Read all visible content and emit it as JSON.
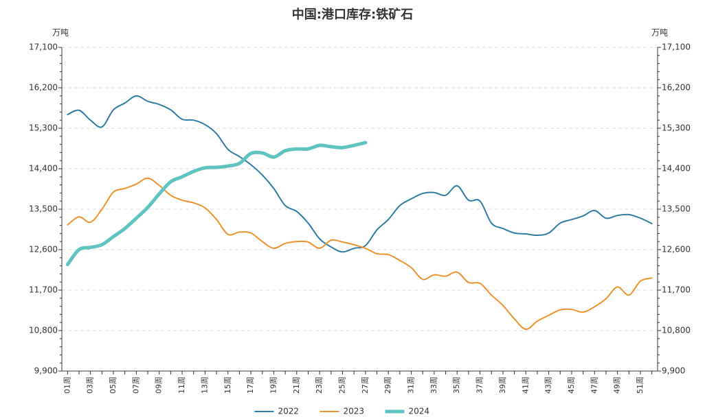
{
  "chart_data": {
    "type": "line",
    "title": "中国:港口库存:铁矿石",
    "y_unit": "万吨",
    "y2_unit": "万吨",
    "categories": [
      "01周",
      null,
      "03周",
      null,
      "05周",
      null,
      "07周",
      null,
      "09周",
      null,
      "11周",
      null,
      "13周",
      null,
      "15周",
      null,
      "17周",
      null,
      "19周",
      null,
      "21周",
      null,
      "23周",
      null,
      "25周",
      null,
      "27周",
      null,
      "29周",
      null,
      "31周",
      null,
      "33周",
      null,
      "35周",
      null,
      "37周",
      null,
      "39周",
      null,
      "41周",
      null,
      "43周",
      null,
      "45周",
      null,
      "47周",
      null,
      "49周",
      null,
      "51周",
      null
    ],
    "series": [
      {
        "name": "2022",
        "color": "#2e7ca3",
        "width": 2,
        "values": [
          15605,
          15700,
          15480,
          15330,
          15710,
          15860,
          16020,
          15900,
          15830,
          15710,
          15500,
          15480,
          15380,
          15180,
          14830,
          14670,
          14490,
          14260,
          13960,
          13580,
          13450,
          13190,
          12840,
          12660,
          12550,
          12630,
          12690,
          13040,
          13270,
          13580,
          13730,
          13850,
          13870,
          13810,
          14020,
          13700,
          13680,
          13190,
          13070,
          12970,
          12950,
          12920,
          12970,
          13190,
          13270,
          13350,
          13470,
          13300,
          13360,
          13380,
          13300,
          13180
        ]
      },
      {
        "name": "2023",
        "color": "#f0922b",
        "width": 2,
        "values": [
          13150,
          13330,
          13210,
          13500,
          13880,
          13960,
          14060,
          14190,
          14030,
          13810,
          13700,
          13640,
          13530,
          13270,
          12940,
          12990,
          12970,
          12780,
          12630,
          12740,
          12780,
          12770,
          12630,
          12810,
          12770,
          12710,
          12630,
          12510,
          12490,
          12360,
          12200,
          11940,
          12040,
          12010,
          12100,
          11870,
          11850,
          11590,
          11360,
          11060,
          10830,
          11010,
          11140,
          11260,
          11270,
          11210,
          11330,
          11510,
          11770,
          11590,
          11900,
          11970
        ]
      },
      {
        "name": "2024",
        "color": "#5fc3c0",
        "width": 5,
        "values": [
          12270,
          12600,
          12650,
          12710,
          12890,
          13070,
          13300,
          13540,
          13840,
          14110,
          14220,
          14340,
          14420,
          14430,
          14460,
          14520,
          14740,
          14750,
          14660,
          14800,
          14840,
          14840,
          14920,
          14890,
          14870,
          14920,
          14980,
          null,
          null,
          null,
          null,
          null,
          null,
          null,
          null,
          null,
          null,
          null,
          null,
          null,
          null,
          null,
          null,
          null,
          null,
          null,
          null,
          null,
          null,
          null,
          null,
          null
        ]
      }
    ],
    "ylim": [
      9900,
      17100
    ],
    "yticks": [
      {
        "value": 9900,
        "label": "9,900"
      },
      {
        "value": 10800,
        "label": "10,800"
      },
      {
        "value": 11700,
        "label": "11,700"
      },
      {
        "value": 12600,
        "label": "12,600"
      },
      {
        "value": 13500,
        "label": "13,500"
      },
      {
        "value": 14400,
        "label": "14,400"
      },
      {
        "value": 15300,
        "label": "15,300"
      },
      {
        "value": 16200,
        "label": "16,200"
      },
      {
        "value": 17100,
        "label": "17,100"
      }
    ],
    "y2lim": [
      9900,
      17100
    ],
    "y2ticks": [
      {
        "value": 9900,
        "label": "9,900"
      },
      {
        "value": 10800,
        "label": "10,800"
      },
      {
        "value": 11700,
        "label": "11,700"
      },
      {
        "value": 12600,
        "label": "12,600"
      },
      {
        "value": 13500,
        "label": "13,500"
      },
      {
        "value": 14400,
        "label": "14,400"
      },
      {
        "value": 15300,
        "label": "15,300"
      },
      {
        "value": 16200,
        "label": "16,200"
      },
      {
        "value": 17100,
        "label": "17,100"
      }
    ],
    "grid": true,
    "legend": "bottom"
  }
}
